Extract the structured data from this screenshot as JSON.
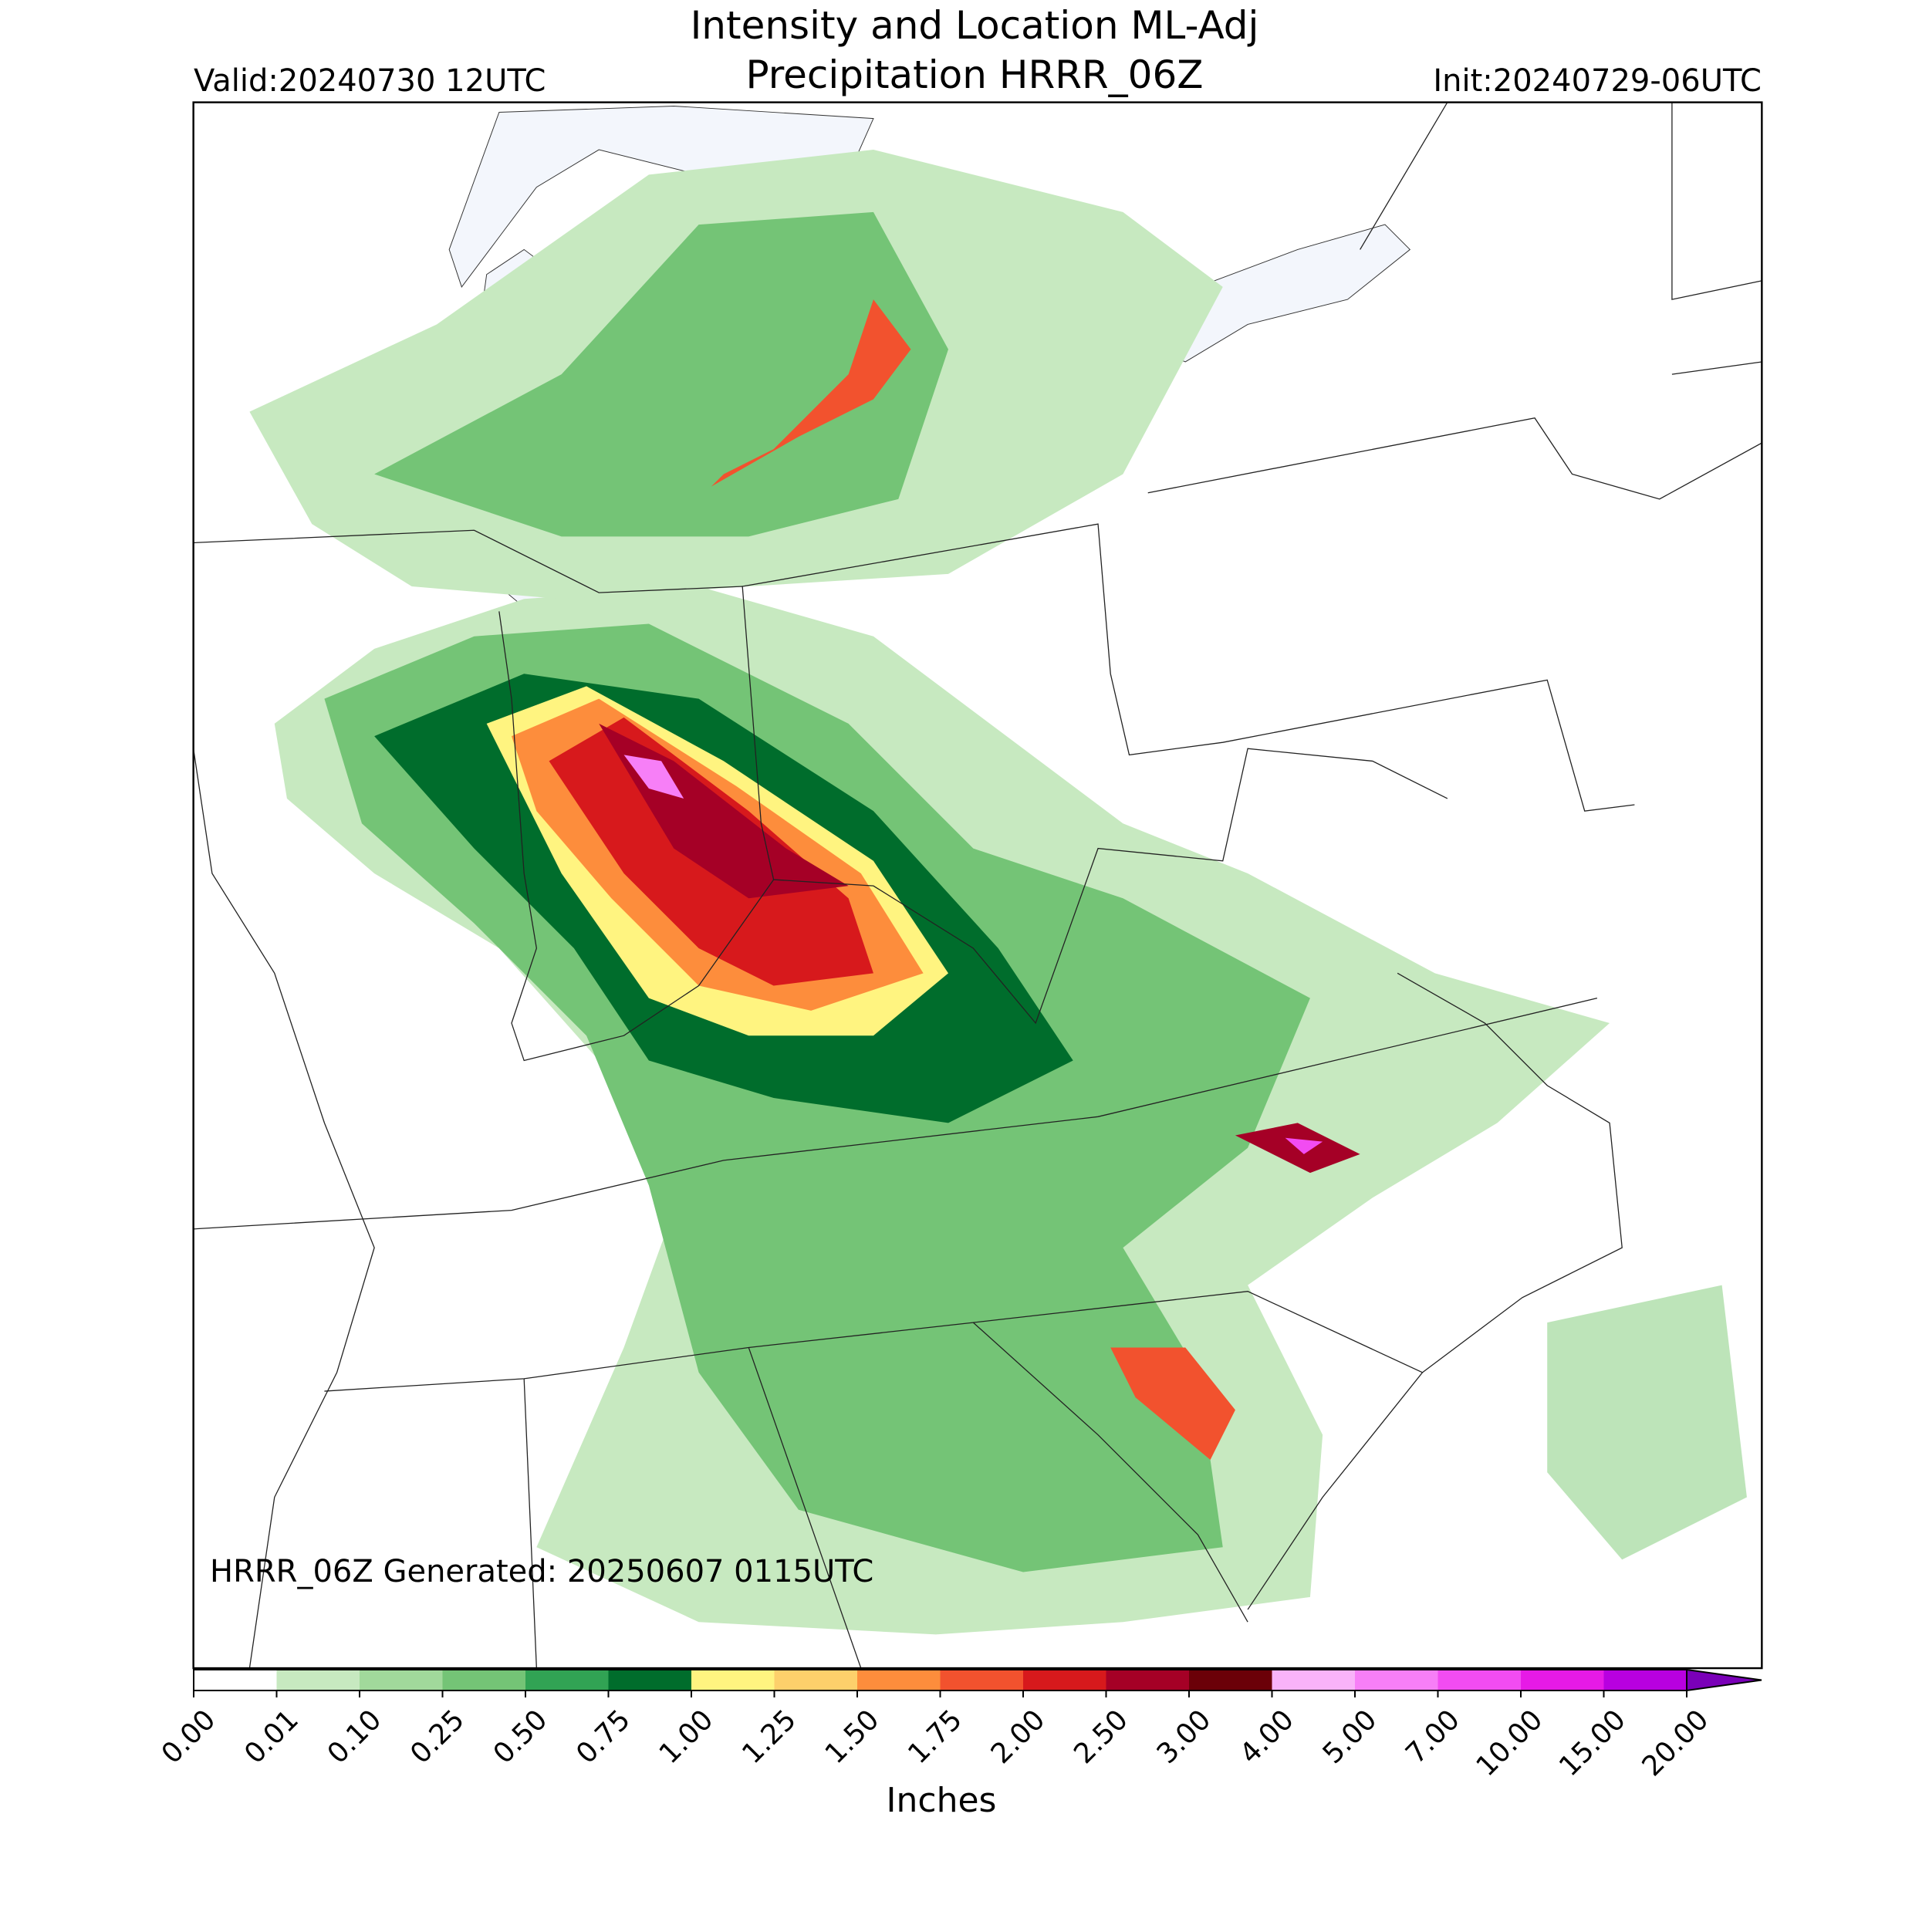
{
  "header": {
    "title_lines": [
      "Intensity and Location ML-Adj",
      "Precipitation HRRR_06Z"
    ],
    "valid": "Valid:20240730 12UTC",
    "init": "Init:20240729-06UTC"
  },
  "map": {
    "note": "HRRR_06Z Generated: 20250607 0115UTC"
  },
  "colorbar": {
    "ticks": [
      {
        "value": 0,
        "label": "0.00"
      },
      {
        "value": 0.01,
        "label": "0.01"
      },
      {
        "value": 0.1,
        "label": "0.10"
      },
      {
        "value": 0.25,
        "label": "0.25"
      },
      {
        "value": 0.5,
        "label": "0.50"
      },
      {
        "value": 0.75,
        "label": "0.75"
      },
      {
        "value": 1,
        "label": "1.00"
      },
      {
        "value": 1.25,
        "label": "1.25"
      },
      {
        "value": 1.5,
        "label": "1.50"
      },
      {
        "value": 1.75,
        "label": "1.75"
      },
      {
        "value": 2,
        "label": "2.00"
      },
      {
        "value": 2.5,
        "label": "2.50"
      },
      {
        "value": 3,
        "label": "3.00"
      },
      {
        "value": 4,
        "label": "4.00"
      },
      {
        "value": 5,
        "label": "5.00"
      },
      {
        "value": 7,
        "label": "7.00"
      },
      {
        "value": 10,
        "label": "10.00"
      },
      {
        "value": 15,
        "label": "15.00"
      },
      {
        "value": 20,
        "label": "20.00"
      }
    ],
    "colors": [
      "#ffffff",
      "#c7e9c0",
      "#a1d99b",
      "#74c476",
      "#31a354",
      "#006d2c",
      "#fff480",
      "#fdd06b",
      "#fd8d3c",
      "#f2522e",
      "#d7191c",
      "#a50026",
      "#6b0008",
      "#f9b3f9",
      "#f77ff7",
      "#f24cf2",
      "#e61ae6",
      "#b800e0"
    ],
    "extend_color": "#7a00b8",
    "label": "Inches"
  }
}
